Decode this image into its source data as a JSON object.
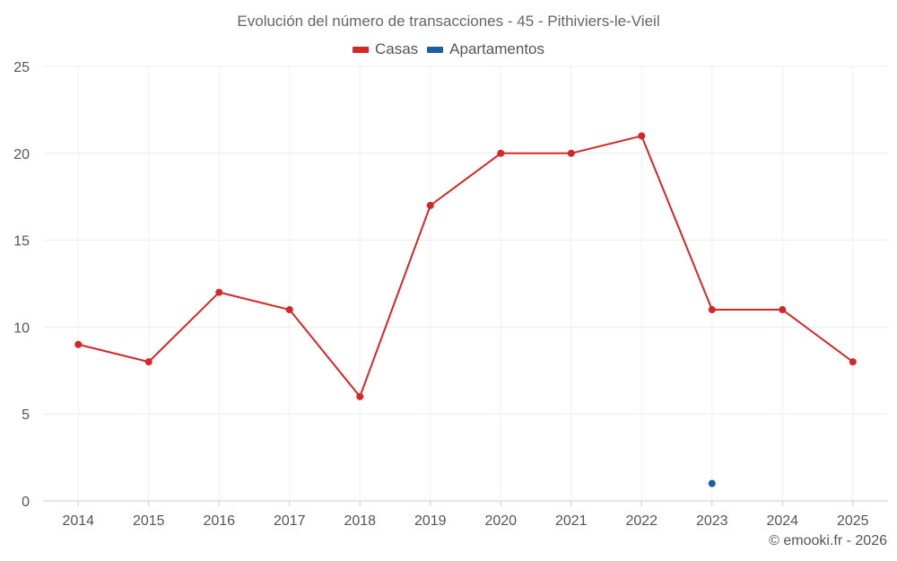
{
  "chart_data": {
    "type": "line",
    "title": "Evolución del número de transacciones - 45 - Pithiviers-le-Vieil",
    "categories": [
      "2014",
      "2015",
      "2016",
      "2017",
      "2018",
      "2019",
      "2020",
      "2021",
      "2022",
      "2023",
      "2024",
      "2025"
    ],
    "series": [
      {
        "name": "Casas",
        "color": "#d62728",
        "values": [
          9,
          8,
          12,
          11,
          6,
          17,
          20,
          20,
          21,
          11,
          11,
          8
        ]
      },
      {
        "name": "Apartamentos",
        "color": "#1f5fa0",
        "values": [
          null,
          null,
          null,
          null,
          null,
          null,
          null,
          null,
          null,
          1,
          null,
          null
        ]
      }
    ],
    "y_ticks": [
      0,
      5,
      10,
      15,
      20,
      25
    ],
    "ylim": [
      0,
      25
    ],
    "xlabel": "",
    "ylabel": "",
    "grid": true,
    "legend": "top-center"
  },
  "credit": "© emooki.fr - 2026"
}
